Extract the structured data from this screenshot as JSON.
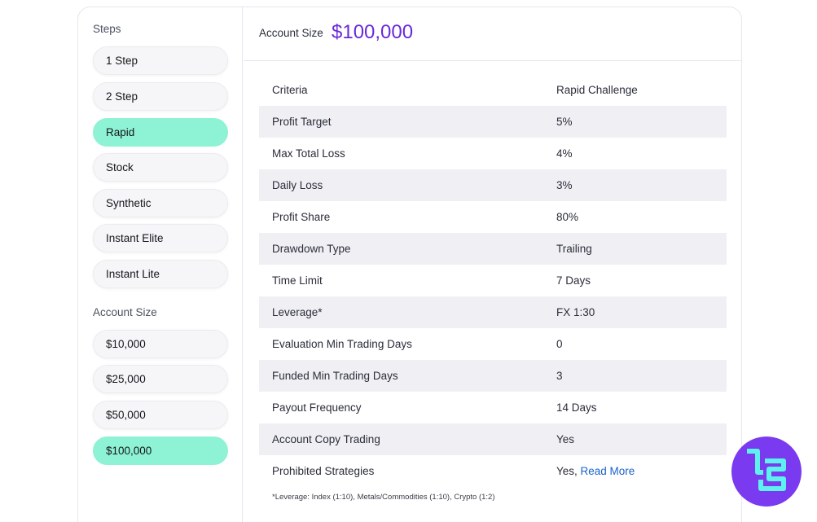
{
  "sidebar": {
    "steps_title": "Steps",
    "steps": [
      "1 Step",
      "2 Step",
      "Rapid",
      "Stock",
      "Synthetic",
      "Instant Elite",
      "Instant Lite"
    ],
    "active_step": "Rapid",
    "account_size_title": "Account Size",
    "account_sizes": [
      "$10,000",
      "$25,000",
      "$50,000",
      "$100,000"
    ],
    "active_account_size": "$100,000"
  },
  "header": {
    "label": "Account Size",
    "value": "$100,000"
  },
  "table": {
    "header": [
      "Criteria",
      "Rapid Challenge"
    ],
    "rows": [
      [
        "Profit Target",
        "5%"
      ],
      [
        "Max Total Loss",
        "4%"
      ],
      [
        "Daily Loss",
        "3%"
      ],
      [
        "Profit Share",
        "80%"
      ],
      [
        "Drawdown Type",
        "Trailing"
      ],
      [
        "Time Limit",
        "7 Days"
      ],
      [
        "Leverage*",
        "FX 1:30"
      ],
      [
        "Evaluation Min Trading Days",
        "0"
      ],
      [
        "Funded Min Trading Days",
        "3"
      ],
      [
        "Payout Frequency",
        "14 Days"
      ],
      [
        "Account Copy Trading",
        "Yes"
      ]
    ],
    "last_row": {
      "label": "Prohibited Strategies",
      "value_prefix": "Yes, ",
      "link": "Read More"
    }
  },
  "footnote": "*Leverage: Index (1:10), Metals/Commodities (1:10), Crypto (1:2)",
  "colors": {
    "accent": "#6a29d9",
    "active_pill": "#8ef2d4",
    "link": "#1a63c9",
    "logo": "#7a3bf0",
    "logo_mark": "#5ef2ee"
  },
  "icons": {
    "brand_logo": "tradingfinder-logo-icon"
  }
}
